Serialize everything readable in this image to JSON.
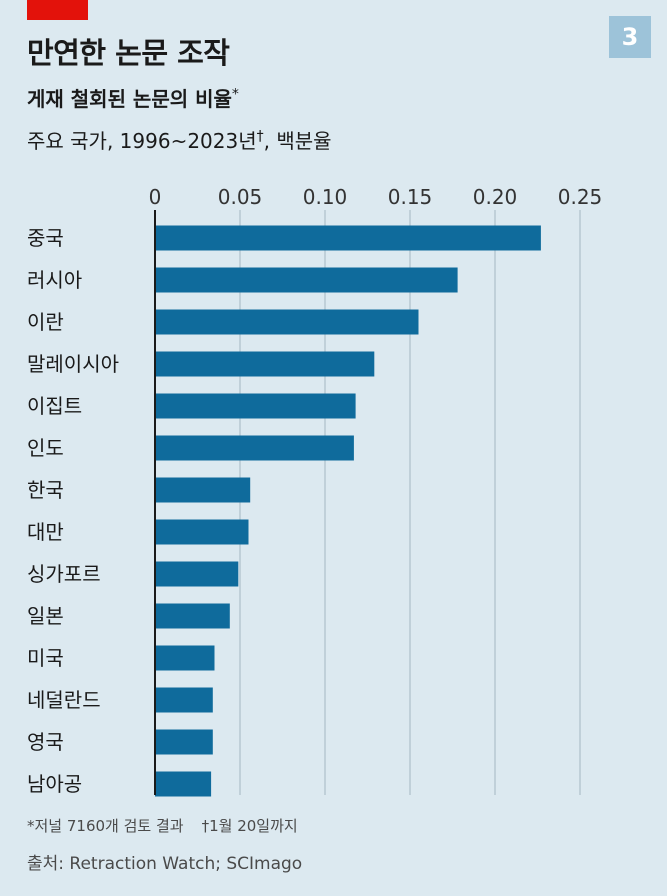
{
  "header": {
    "badge": "3",
    "title": "만연한 논문 조작",
    "subtitle": "게재 철회된 논문의 비율",
    "subtitle_mark": "*",
    "desc_prefix": "주요 국가, 1996~2023년",
    "desc_mark": "†",
    "desc_suffix": ", 백분율"
  },
  "colors": {
    "bar": "#0f6b9c",
    "background": "#dce9f0",
    "grid": "#b7c7d1",
    "accent": "#e3120b"
  },
  "chart_data": {
    "type": "bar",
    "orientation": "horizontal",
    "categories": [
      "중국",
      "러시아",
      "이란",
      "말레이시아",
      "이집트",
      "인도",
      "한국",
      "대만",
      "싱가포르",
      "일본",
      "미국",
      "네덜란드",
      "영국",
      "남아공"
    ],
    "values": [
      0.227,
      0.178,
      0.155,
      0.129,
      0.118,
      0.117,
      0.056,
      0.055,
      0.049,
      0.044,
      0.035,
      0.034,
      0.034,
      0.033
    ],
    "xlim": [
      0,
      0.25
    ],
    "ticks": [
      "0",
      "0.05",
      "0.10",
      "0.15",
      "0.20",
      "0.25"
    ],
    "tick_values": [
      0,
      0.05,
      0.1,
      0.15,
      0.2,
      0.25
    ],
    "grid": true,
    "legend": "none"
  },
  "footer": {
    "note1": "*저널 7160개 검토 결과",
    "note2": "†1월 20일까지",
    "source": "출처: Retraction Watch; SCImago"
  }
}
